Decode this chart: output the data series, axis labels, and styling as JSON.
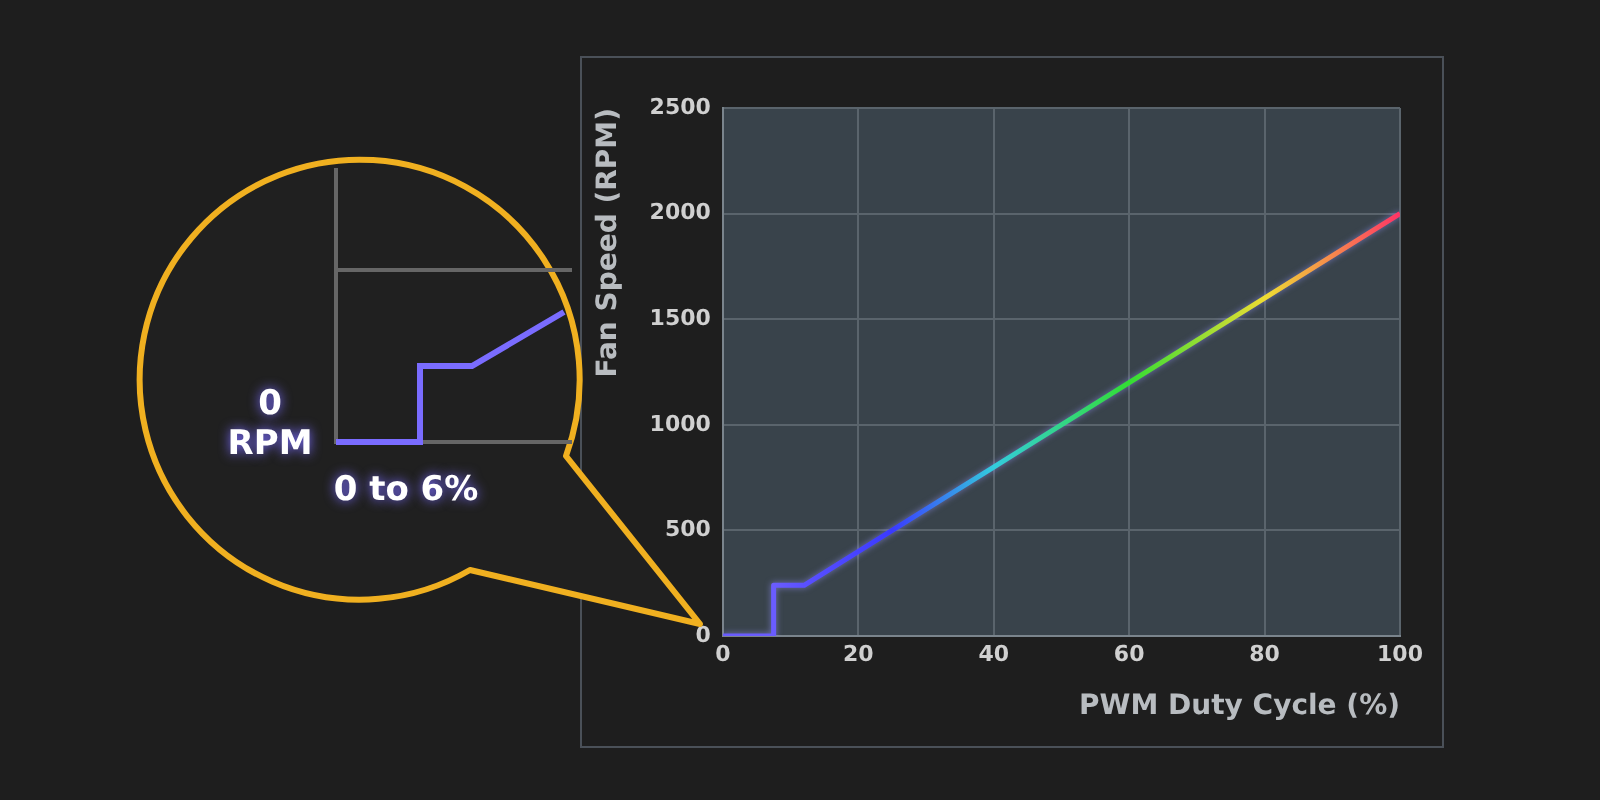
{
  "chart_data": {
    "type": "line",
    "xlabel": "PWM Duty Cycle (%)",
    "ylabel": "Fan Speed (RPM)",
    "xlim": [
      0,
      100
    ],
    "xticks": [
      0,
      20,
      40,
      60,
      80,
      100
    ],
    "ylim": [
      0,
      2500
    ],
    "yticks": [
      0,
      500,
      1000,
      1500,
      2000,
      2500
    ],
    "series": [
      {
        "x": [
          0,
          7.5,
          7.5,
          12,
          25,
          40,
          60,
          80,
          100
        ],
        "values": [
          0,
          0,
          240,
          240,
          500,
          800,
          1200,
          1600,
          2000
        ],
        "colors": [
          "#6a5cff",
          "#6a5cff",
          "#6a5cff",
          "#5a50ff",
          "#3a3aff",
          "#33ccdd",
          "#33dd33",
          "#eedd33",
          "#ff3366"
        ]
      }
    ],
    "grid": true,
    "legend": false,
    "marker": "none",
    "line_style": "solid",
    "annotations": [
      "0 RPM",
      "0 to 6%"
    ]
  }
}
